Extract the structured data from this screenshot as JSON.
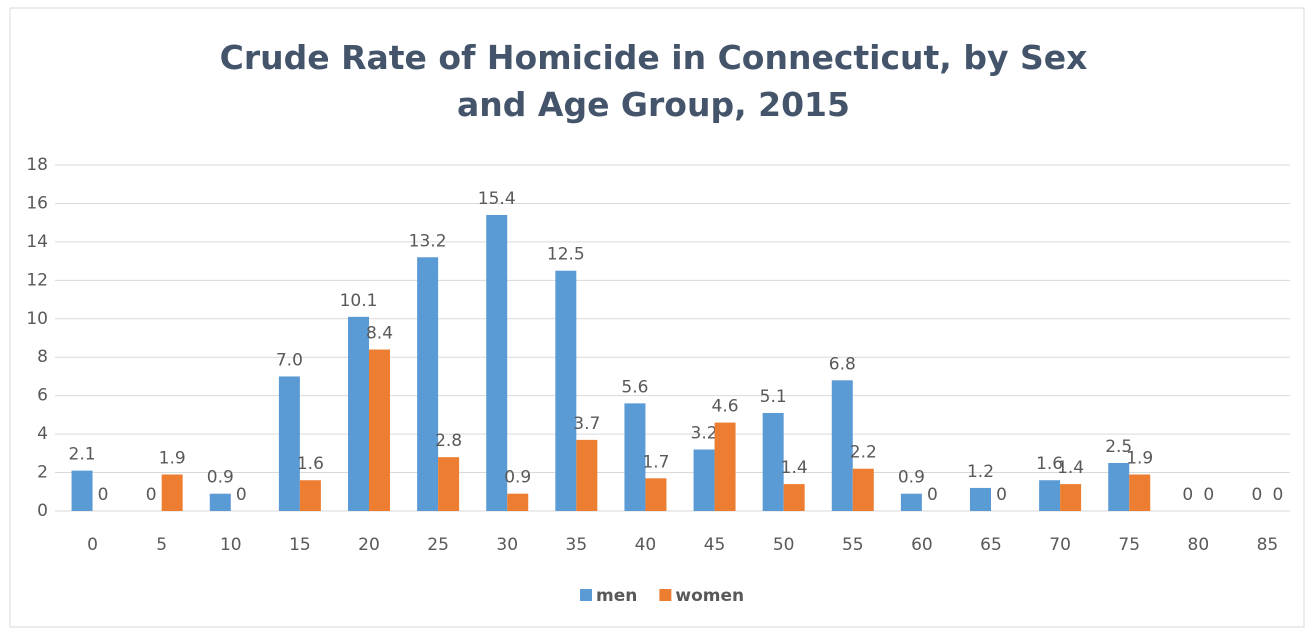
{
  "chart_data": {
    "type": "bar",
    "title": "Crude Rate of Homicide in Connecticut, by Sex and Age Group, 2015",
    "categories": [
      "0",
      "5",
      "10",
      "15",
      "20",
      "25",
      "30",
      "35",
      "40",
      "45",
      "50",
      "55",
      "60",
      "65",
      "70",
      "75",
      "80",
      "85"
    ],
    "series": [
      {
        "name": "men",
        "color": "#5b9bd5",
        "values": [
          2.1,
          0,
          0.9,
          7.0,
          10.1,
          13.2,
          15.4,
          12.5,
          5.6,
          3.2,
          5.1,
          6.8,
          0.9,
          1.2,
          1.6,
          2.5,
          0,
          0
        ],
        "value_labels": [
          "2.1",
          "0",
          "0.9",
          "7.0",
          "10.1",
          "13.2",
          "15.4",
          "12.5",
          "5.6",
          "3.2",
          "5.1",
          "6.8",
          "0.9",
          "1.2",
          "1.6",
          "2.5",
          "0",
          "0"
        ]
      },
      {
        "name": "women",
        "color": "#ed7d31",
        "values": [
          0,
          1.9,
          0,
          1.6,
          8.4,
          2.8,
          0.9,
          3.7,
          1.7,
          4.6,
          1.4,
          2.2,
          0,
          0,
          1.4,
          1.9,
          0,
          0
        ],
        "value_labels": [
          "0",
          "1.9",
          "0",
          "1.6",
          "8.4",
          "2.8",
          "0.9",
          "3.7",
          "1.7",
          "4.6",
          "1.4",
          "2.2",
          "0",
          "0",
          "1.4",
          "1.9",
          "0",
          "0"
        ]
      }
    ],
    "ylim": [
      0,
      18
    ],
    "yticks": [
      0,
      2,
      4,
      6,
      8,
      10,
      12,
      14,
      16,
      18
    ],
    "grid": true,
    "legend": "bottom"
  }
}
